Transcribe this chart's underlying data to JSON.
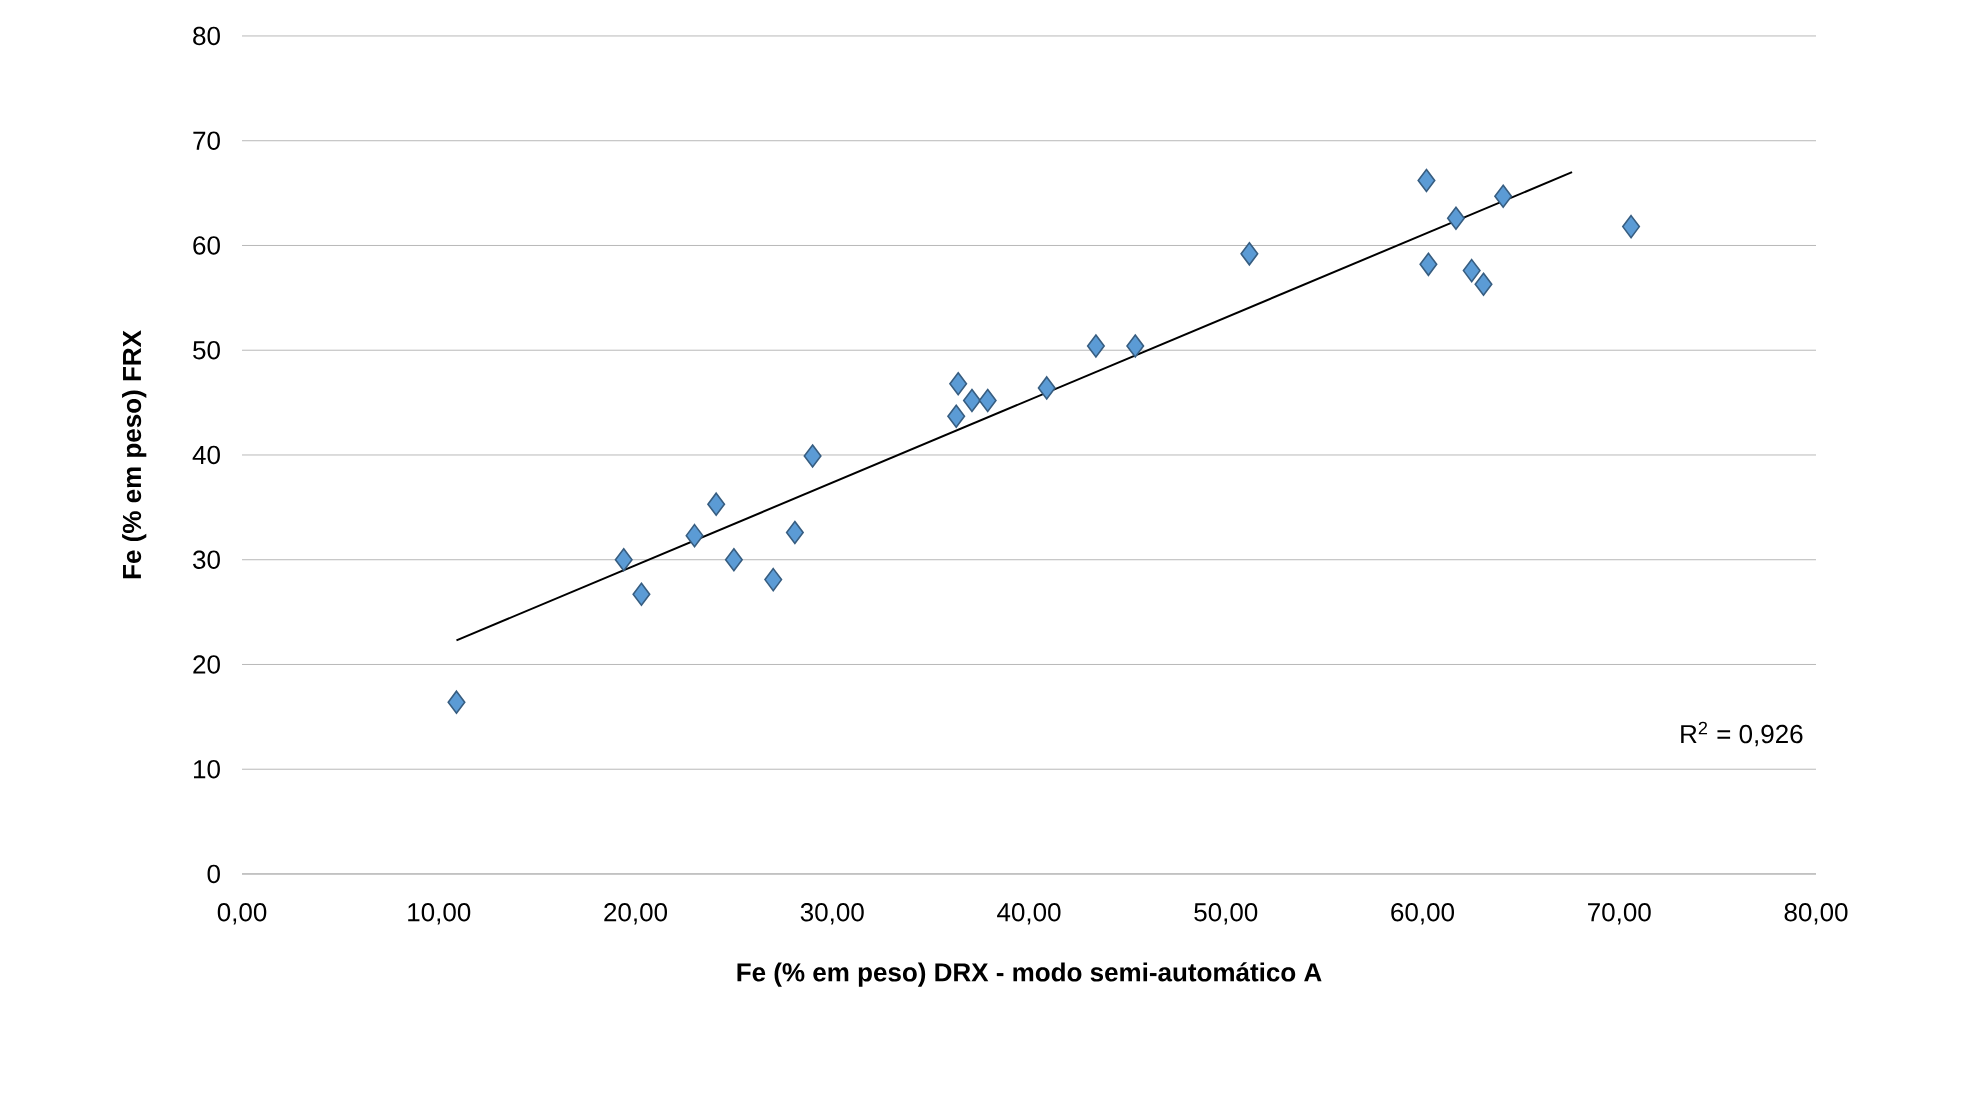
{
  "chart_data": {
    "type": "scatter",
    "xlabel": "Fe (% em peso) DRX - modo semi-automático A",
    "ylabel": "Fe (% em peso) FRX",
    "series": [
      {
        "color": "#5b9bd5",
        "x": [
          10.9,
          19.4,
          20.3,
          23.0,
          24.1,
          25.0,
          27.0,
          28.1,
          29.0,
          36.4,
          36.3,
          37.1,
          37.9,
          40.9,
          43.4,
          45.4,
          51.2,
          60.2,
          60.3,
          61.7,
          62.5,
          63.1,
          64.1,
          70.6
        ],
        "values": [
          16.4,
          30.0,
          26.7,
          32.3,
          35.3,
          30.0,
          28.1,
          32.6,
          39.9,
          46.8,
          43.7,
          45.2,
          45.2,
          46.4,
          50.4,
          50.4,
          59.2,
          66.2,
          58.2,
          62.6,
          57.6,
          56.3,
          64.7,
          61.8
        ],
        "marker": "diamond"
      },
      {
        "type": "line",
        "color": "#000000",
        "x": [
          10.9,
          67.6
        ],
        "values": [
          22.3,
          67.0
        ],
        "marker": "none",
        "line_style": "solid"
      }
    ],
    "xlim": [
      0,
      80
    ],
    "ylim": [
      0,
      80
    ],
    "xticks": [
      {
        "value": 0,
        "label": "0,00"
      },
      {
        "value": 10,
        "label": "10,00"
      },
      {
        "value": 20,
        "label": "20,00"
      },
      {
        "value": 30,
        "label": "30,00"
      },
      {
        "value": 40,
        "label": "40,00"
      },
      {
        "value": 50,
        "label": "50,00"
      },
      {
        "value": 60,
        "label": "60,00"
      },
      {
        "value": 70,
        "label": "70,00"
      },
      {
        "value": 80,
        "label": "80,00"
      }
    ],
    "yticks": [
      0,
      10,
      20,
      30,
      40,
      50,
      60,
      70,
      80
    ],
    "grid": "y",
    "annotations": [
      "R$^{2}$ = 0,926"
    ]
  }
}
